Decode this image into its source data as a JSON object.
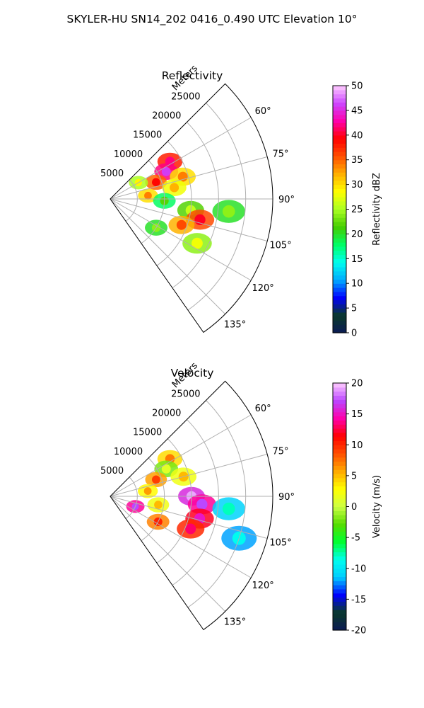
{
  "figure": {
    "suptitle": "SKYLER-HU  SN14_202  0416_0.490 UTC Elevation 10°"
  },
  "chart_data": [
    {
      "type": "heatmap",
      "projection": "polar-sector",
      "title": "Reflectivity",
      "range_label": "Meters",
      "range_ticks": [
        5000,
        10000,
        15000,
        20000,
        25000
      ],
      "range_max": 30000,
      "azimuth_min": 45,
      "azimuth_max": 145,
      "azimuth_ticks": [
        "60°",
        "75°",
        "90°",
        "105°",
        "120°",
        "135°"
      ],
      "azimuth_tick_values": [
        60,
        75,
        90,
        105,
        120,
        135
      ],
      "grid": true,
      "colorbar": {
        "label": "Reflectivity dBZ",
        "min": 0,
        "max": 50,
        "ticks": [
          0,
          5,
          10,
          15,
          20,
          25,
          30,
          35,
          40,
          45,
          50
        ],
        "stops": [
          "#0b1a55",
          "#0a3a2a",
          "#0000ff",
          "#00aaff",
          "#00ffee",
          "#00ff66",
          "#44cc00",
          "#aaff22",
          "#ffff00",
          "#ffb000",
          "#ff5000",
          "#ff0000",
          "#ff00aa",
          "#cc44ff",
          "#ffccff"
        ]
      },
      "echo_cells": [
        {
          "az": 58,
          "r": 13000,
          "value": 38
        },
        {
          "az": 64,
          "r": 11500,
          "value": 42
        },
        {
          "az": 70,
          "r": 9000,
          "value": 35
        },
        {
          "az": 73,
          "r": 14000,
          "value": 30
        },
        {
          "az": 80,
          "r": 12000,
          "value": 28
        },
        {
          "az": 85,
          "r": 7000,
          "value": 30
        },
        {
          "az": 92,
          "r": 10000,
          "value": 18
        },
        {
          "az": 98,
          "r": 15000,
          "value": 22
        },
        {
          "az": 103,
          "r": 17000,
          "value": 36
        },
        {
          "az": 110,
          "r": 14000,
          "value": 32
        },
        {
          "az": 117,
          "r": 18000,
          "value": 24
        },
        {
          "az": 96,
          "r": 22000,
          "value": 20
        },
        {
          "az": 122,
          "r": 10000,
          "value": 20
        },
        {
          "az": 60,
          "r": 6000,
          "value": 25
        }
      ]
    },
    {
      "type": "heatmap",
      "projection": "polar-sector",
      "title": "Velocity",
      "range_label": "Meters",
      "range_ticks": [
        5000,
        10000,
        15000,
        20000,
        25000
      ],
      "range_max": 30000,
      "azimuth_min": 45,
      "azimuth_max": 145,
      "azimuth_ticks": [
        "60°",
        "75°",
        "90°",
        "105°",
        "120°",
        "135°"
      ],
      "azimuth_tick_values": [
        60,
        75,
        90,
        105,
        120,
        135
      ],
      "grid": true,
      "colorbar": {
        "label": "Velocity (m/s)",
        "min": -20,
        "max": 20,
        "ticks": [
          -20,
          -15,
          -10,
          -5,
          0,
          5,
          10,
          15,
          20
        ],
        "stops": [
          "#0b1a55",
          "#0a3a2a",
          "#0000ff",
          "#00ccff",
          "#00ffee",
          "#00ff33",
          "#55dd00",
          "#ccff44",
          "#ffff00",
          "#ffaa00",
          "#ff5000",
          "#ff0000",
          "#ff00aa",
          "#bb44ff",
          "#ffccff"
        ]
      },
      "echo_cells": [
        {
          "az": 58,
          "r": 13000,
          "value": 4
        },
        {
          "az": 64,
          "r": 11500,
          "value": -2
        },
        {
          "az": 70,
          "r": 9000,
          "value": 6
        },
        {
          "az": 75,
          "r": 14000,
          "value": 2
        },
        {
          "az": 82,
          "r": 7000,
          "value": 3
        },
        {
          "az": 90,
          "r": 15000,
          "value": 16
        },
        {
          "az": 95,
          "r": 17000,
          "value": 14
        },
        {
          "az": 104,
          "r": 17000,
          "value": 12
        },
        {
          "az": 112,
          "r": 16000,
          "value": 10
        },
        {
          "az": 100,
          "r": 9000,
          "value": 2
        },
        {
          "az": 118,
          "r": 10000,
          "value": 7
        },
        {
          "az": 96,
          "r": 22000,
          "value": -11
        },
        {
          "az": 108,
          "r": 25000,
          "value": -12
        },
        {
          "az": 112,
          "r": 5000,
          "value": 14
        }
      ]
    }
  ]
}
